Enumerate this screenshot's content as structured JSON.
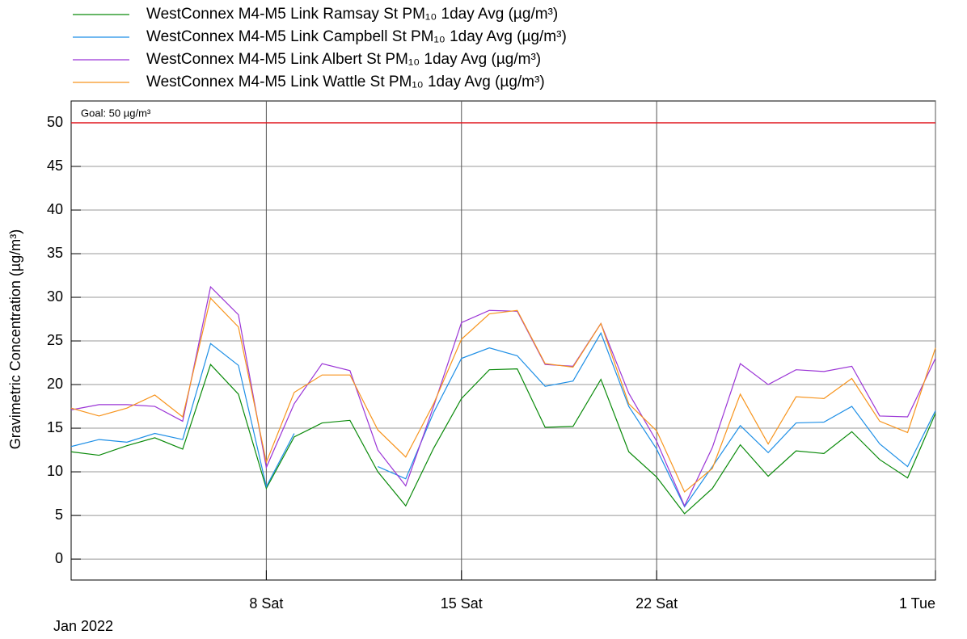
{
  "chart_data": {
    "type": "line",
    "y_axis_label": "Gravimetric Concentration (µg/m³)",
    "x_axis_label": "Jan 2022",
    "x": [
      0,
      1,
      2,
      3,
      4,
      5,
      6,
      7,
      8,
      9,
      10,
      11,
      12,
      13,
      14,
      15,
      16,
      17,
      18,
      19,
      20,
      21,
      22,
      23,
      24,
      25,
      26,
      27,
      28,
      29,
      30,
      31
    ],
    "xlim": [
      0,
      31
    ],
    "xticks": [
      {
        "value": 7,
        "label": "8 Sat"
      },
      {
        "value": 14,
        "label": "15 Sat"
      },
      {
        "value": 21,
        "label": "22 Sat"
      },
      {
        "value": 31,
        "label": "1 Tue"
      }
    ],
    "ylim": [
      -2.4,
      52.5
    ],
    "yticks": [
      0,
      5,
      10,
      15,
      20,
      25,
      30,
      35,
      40,
      45,
      50
    ],
    "grid": true,
    "threshold": {
      "value": 50,
      "label": "Goal: 50 µg/m³",
      "color": "#e0161e"
    },
    "series": [
      {
        "name": "WestConnex M4-M5 Link Ramsay St PM₁₀ 1day Avg (µg/m³)",
        "color": "#0a8a0a",
        "values": [
          12.3,
          11.9,
          13.0,
          13.9,
          12.6,
          22.3,
          18.9,
          8.1,
          14.0,
          15.6,
          15.9,
          10.0,
          6.1,
          12.7,
          18.4,
          21.7,
          21.8,
          15.1,
          15.2,
          20.6,
          12.3,
          9.4,
          5.2,
          8.1,
          13.1,
          9.5,
          12.4,
          12.1,
          14.6,
          11.4,
          9.3,
          16.7
        ]
      },
      {
        "name": "WestConnex M4-M5 Link Campbell St PM₁₀ 1day Avg (µg/m³)",
        "color": "#1e8fe6",
        "values": [
          12.9,
          13.7,
          13.4,
          14.4,
          13.7,
          24.7,
          22.2,
          8.3,
          14.4,
          null,
          null,
          10.6,
          9.2,
          16.8,
          23.0,
          24.2,
          23.3,
          19.8,
          20.4,
          25.9,
          17.5,
          12.6,
          6.0,
          10.6,
          15.3,
          12.2,
          15.6,
          15.7,
          17.5,
          13.2,
          10.6,
          17.0
        ]
      },
      {
        "name": "WestConnex M4-M5 Link Albert St PM₁₀ 1day Avg (µg/m³)",
        "color": "#9b35d6",
        "values": [
          17.1,
          17.7,
          17.7,
          17.5,
          15.8,
          31.2,
          28.0,
          10.5,
          17.8,
          22.4,
          21.6,
          12.5,
          8.4,
          17.5,
          27.1,
          28.5,
          28.4,
          22.3,
          22.1,
          27.0,
          19.0,
          13.5,
          6.1,
          12.8,
          22.4,
          20.0,
          21.7,
          21.5,
          22.1,
          16.4,
          16.3,
          23.0
        ]
      },
      {
        "name": "WestConnex M4-M5 Link Wattle St PM₁₀ 1day Avg (µg/m³)",
        "color": "#f7941d",
        "values": [
          17.3,
          16.4,
          17.3,
          18.8,
          16.3,
          29.9,
          26.6,
          11.1,
          19.1,
          21.1,
          21.1,
          14.8,
          11.7,
          17.8,
          25.2,
          28.1,
          28.5,
          22.4,
          22.0,
          27.0,
          17.8,
          14.7,
          7.7,
          10.4,
          18.9,
          13.2,
          18.6,
          18.4,
          20.7,
          15.8,
          14.5,
          24.2
        ]
      }
    ]
  }
}
